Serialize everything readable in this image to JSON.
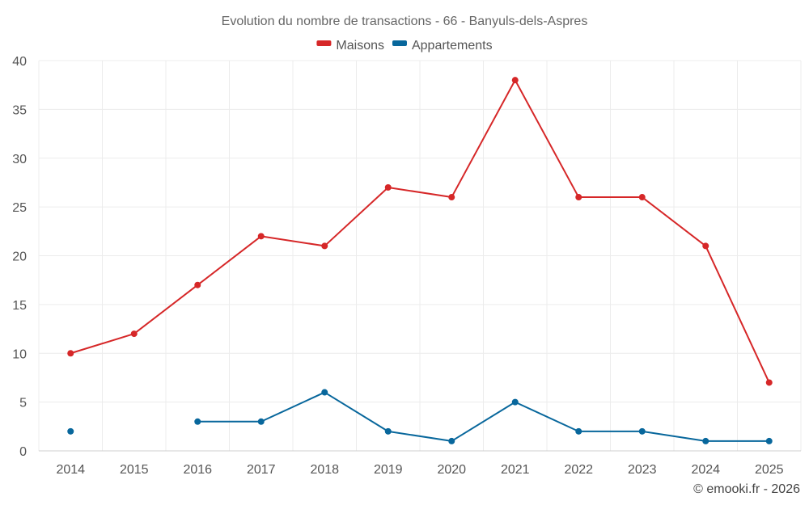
{
  "chart_data": {
    "type": "line",
    "title": "Evolution du nombre de transactions - 66 - Banyuls-dels-Aspres",
    "xlabel": "",
    "ylabel": "",
    "categories": [
      "2014",
      "2015",
      "2016",
      "2017",
      "2018",
      "2019",
      "2020",
      "2021",
      "2022",
      "2023",
      "2024",
      "2025"
    ],
    "ylim": [
      0,
      40
    ],
    "yticks": [
      0,
      5,
      10,
      15,
      20,
      25,
      30,
      35,
      40
    ],
    "grid": true,
    "legend_position": "top-center",
    "series": [
      {
        "name": "Maisons",
        "color": "#d62728",
        "values": [
          10,
          12,
          17,
          22,
          21,
          27,
          26,
          38,
          26,
          26,
          21,
          7
        ]
      },
      {
        "name": "Appartements",
        "color": "#08679c",
        "values": [
          2,
          null,
          3,
          3,
          6,
          2,
          1,
          5,
          2,
          2,
          1,
          1
        ]
      }
    ]
  },
  "credit": "© emooki.fr - 2026"
}
